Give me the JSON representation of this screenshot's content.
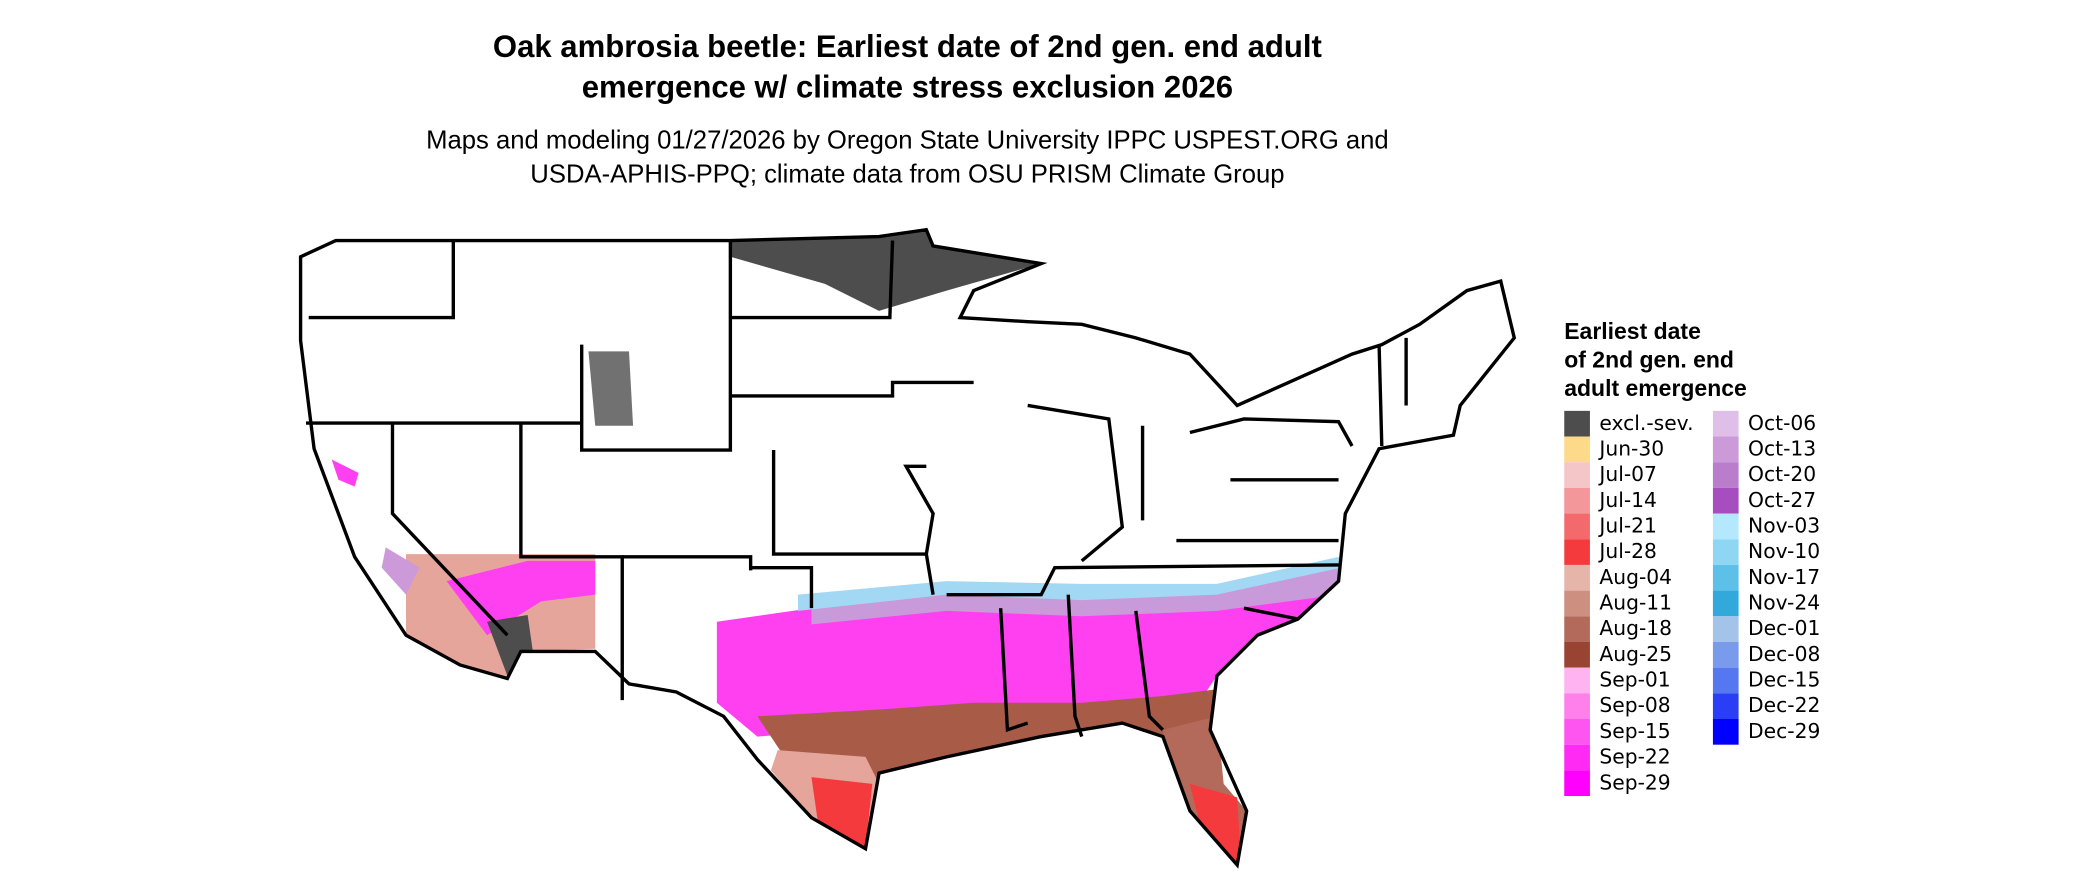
{
  "header": {
    "title": [
      "Oak ambrosia beetle: Earliest date of 2nd gen. end adult",
      "emergence w/ climate stress exclusion 2026"
    ],
    "subtitle": [
      "Maps and modeling 01/27/2026 by Oregon State University IPPC USPEST.ORG and",
      "USDA-APHIS-PPQ; climate data from OSU PRISM Climate Group"
    ]
  },
  "legend": {
    "title": [
      "Earliest date",
      "of 2nd gen. end",
      "adult emergence"
    ],
    "items": [
      {
        "label": "excl.-sev.",
        "color": "#4d4d4d"
      },
      {
        "label": "Jun-30",
        "color": "#fdd98a"
      },
      {
        "label": "Jul-07",
        "color": "#f5c6c8"
      },
      {
        "label": "Jul-14",
        "color": "#f4979a"
      },
      {
        "label": "Jul-21",
        "color": "#f46a6c"
      },
      {
        "label": "Jul-28",
        "color": "#f43a3c"
      },
      {
        "label": "Aug-04",
        "color": "#e6b5a9"
      },
      {
        "label": "Aug-11",
        "color": "#cc8f80"
      },
      {
        "label": "Aug-18",
        "color": "#b36a5a"
      },
      {
        "label": "Aug-25",
        "color": "#994433"
      },
      {
        "label": "Sep-01",
        "color": "#ffb3f0"
      },
      {
        "label": "Sep-08",
        "color": "#ff80ea"
      },
      {
        "label": "Sep-15",
        "color": "#ff55f0"
      },
      {
        "label": "Sep-22",
        "color": "#ff2bf5"
      },
      {
        "label": "Sep-29",
        "color": "#ff00ff"
      },
      {
        "label": "Oct-06",
        "color": "#dfbfe8"
      },
      {
        "label": "Oct-13",
        "color": "#cc99d9"
      },
      {
        "label": "Oct-20",
        "color": "#b97dcc"
      },
      {
        "label": "Oct-27",
        "color": "#a64dbf"
      },
      {
        "label": "Nov-03",
        "color": "#b3e8ff"
      },
      {
        "label": "Nov-10",
        "color": "#8fd6f5"
      },
      {
        "label": "Nov-17",
        "color": "#5cc0e8"
      },
      {
        "label": "Nov-24",
        "color": "#33a8db"
      },
      {
        "label": "Dec-01",
        "color": "#a3c4e8"
      },
      {
        "label": "Dec-08",
        "color": "#7a9aeb"
      },
      {
        "label": "Dec-15",
        "color": "#5577f0"
      },
      {
        "label": "Dec-22",
        "color": "#2a3ef5"
      },
      {
        "label": "Dec-29",
        "color": "#0000ff"
      }
    ]
  }
}
